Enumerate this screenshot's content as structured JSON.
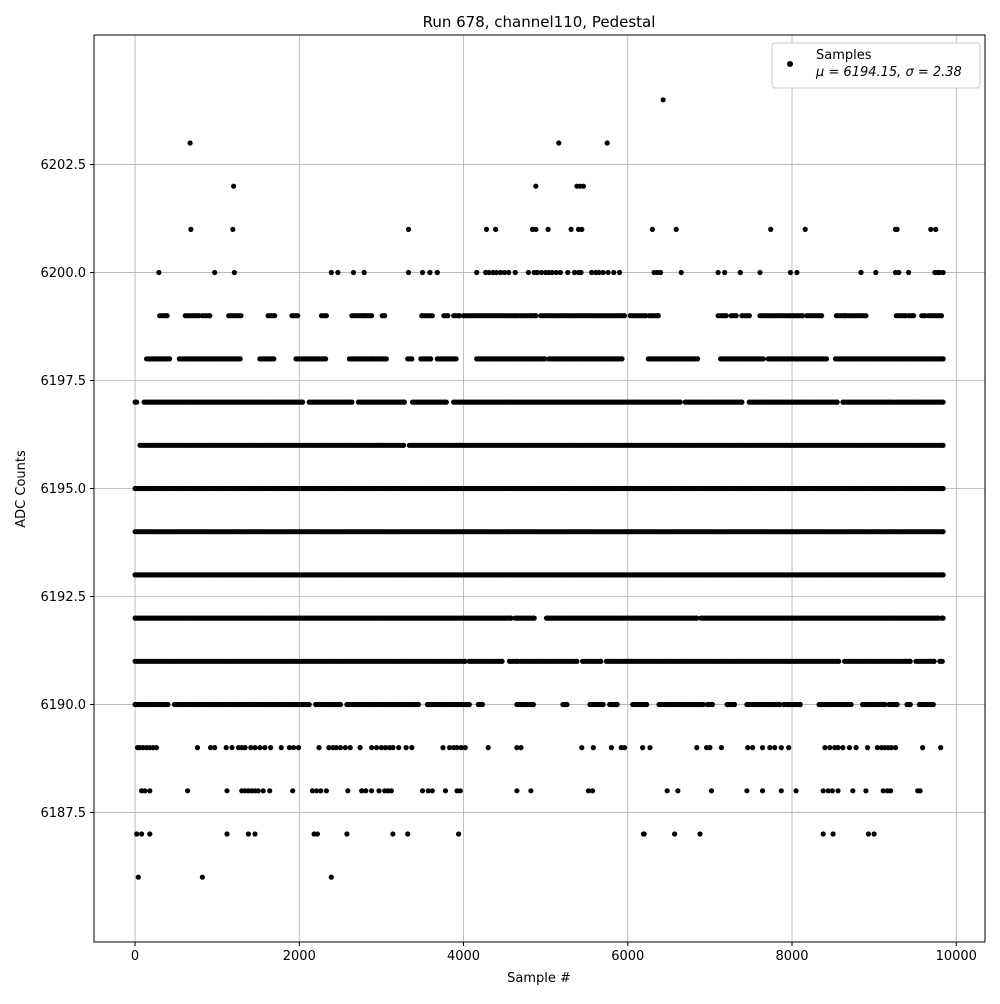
{
  "chart_data": {
    "type": "scatter",
    "title": "Run 678, channel110, Pedestal",
    "xlabel": "Sample #",
    "ylabel": "ADC Counts",
    "xlim": [
      -500,
      10350
    ],
    "ylim": [
      6184.5,
      6205.5
    ],
    "x_ticks": [
      0,
      2000,
      4000,
      6000,
      8000,
      10000
    ],
    "x_tick_labels": [
      "0",
      "2000",
      "4000",
      "6000",
      "8000",
      "10000"
    ],
    "y_ticks": [
      6187.5,
      6190.0,
      6192.5,
      6195.0,
      6197.5,
      6200.0,
      6202.5
    ],
    "y_tick_labels": [
      "6187.5",
      "6190.0",
      "6192.5",
      "6195.0",
      "6197.5",
      "6200.0",
      "6202.5"
    ],
    "grid": true,
    "legend_position": "top-right",
    "legend": {
      "label": "Samples",
      "stats": "μ = 6194.15, σ = 2.38"
    },
    "marker_color": "#000000",
    "n_samples": 9840,
    "levels": [
      {
        "y": 6186,
        "x": [
          40,
          820,
          2390
        ]
      },
      {
        "y": 6187,
        "x": [
          20,
          80,
          180,
          1120,
          1380,
          1460,
          2180,
          2220,
          2580,
          3140,
          3320,
          3940,
          6190,
          6200,
          6570,
          6880,
          8380,
          8500,
          8930,
          9000
        ]
      },
      {
        "y": 6188,
        "x": [
          80,
          120,
          180,
          640,
          1120,
          1300,
          1340,
          1380,
          1420,
          1460,
          1500,
          1560,
          1640,
          1920,
          2160,
          2210,
          2260,
          2330,
          2590,
          2760,
          2810,
          2880,
          2970,
          3040,
          3080,
          3120,
          3500,
          3570,
          3620,
          3780,
          3920,
          3960,
          4650,
          4820,
          5520,
          5570,
          6480,
          6610,
          7020,
          7450,
          7640,
          7870,
          8050,
          8380,
          8440,
          8490,
          8560,
          8740,
          8900,
          9110,
          9160,
          9200,
          9530,
          9560
        ]
      },
      {
        "y": 6189,
        "x": [
          30,
          60,
          100,
          140,
          180,
          220,
          260,
          760,
          920,
          970,
          1110,
          1180,
          1260,
          1300,
          1340,
          1410,
          1460,
          1520,
          1580,
          1650,
          1780,
          1880,
          1930,
          1990,
          2240,
          2360,
          2410,
          2450,
          2500,
          2560,
          2620,
          2740,
          2880,
          2940,
          3000,
          3050,
          3100,
          3140,
          3210,
          3300,
          3370,
          3750,
          3830,
          3880,
          3920,
          3970,
          4020,
          4300,
          4650,
          4700,
          5440,
          5580,
          5800,
          5920,
          5960,
          6180,
          6270,
          6840,
          6960,
          7000,
          7140,
          7460,
          7520,
          7640,
          7730,
          7790,
          7870,
          7960,
          8400,
          8460,
          8520,
          8560,
          8620,
          8700,
          8780,
          8920,
          9040,
          9090,
          9130,
          9170,
          9210,
          9260,
          9590,
          9810
        ]
      }
    ],
    "bands": [
      {
        "y": 6190,
        "ranges": [
          [
            0,
            400
          ],
          [
            480,
            2120
          ],
          [
            2200,
            2500
          ],
          [
            2580,
            3450
          ],
          [
            3560,
            4070
          ],
          [
            4180,
            4230
          ],
          [
            4650,
            4850
          ],
          [
            5210,
            5260
          ],
          [
            5540,
            5700
          ],
          [
            5780,
            5870
          ],
          [
            6060,
            6230
          ],
          [
            6380,
            6920
          ],
          [
            6970,
            7030
          ],
          [
            7210,
            7300
          ],
          [
            7450,
            7850
          ],
          [
            7900,
            8100
          ],
          [
            8330,
            8720
          ],
          [
            8860,
            9130
          ],
          [
            9180,
            9280
          ],
          [
            9400,
            9440
          ],
          [
            9550,
            9720
          ]
        ]
      },
      {
        "y": 6191,
        "ranges": [
          [
            0,
            4020
          ],
          [
            4070,
            4470
          ],
          [
            4560,
            4660
          ],
          [
            4690,
            5380
          ],
          [
            5450,
            5670
          ],
          [
            5740,
            8570
          ],
          [
            8640,
            9440
          ],
          [
            9510,
            9730
          ],
          [
            9800,
            9830
          ]
        ]
      },
      {
        "y": 6192,
        "ranges": [
          [
            0,
            4580
          ],
          [
            4630,
            4860
          ],
          [
            5010,
            6840
          ],
          [
            6890,
            9780
          ],
          [
            9820,
            9840
          ]
        ]
      },
      {
        "y": 6193,
        "ranges": [
          [
            0,
            9840
          ]
        ]
      },
      {
        "y": 6194,
        "ranges": [
          [
            0,
            9840
          ]
        ]
      },
      {
        "y": 6195,
        "ranges": [
          [
            0,
            9840
          ]
        ]
      },
      {
        "y": 6196,
        "ranges": [
          [
            60,
            3270
          ],
          [
            3340,
            9840
          ]
        ]
      },
      {
        "y": 6197,
        "ranges": [
          [
            0,
            20
          ],
          [
            110,
            2040
          ],
          [
            2120,
            2640
          ],
          [
            2720,
            3280
          ],
          [
            3380,
            3790
          ],
          [
            3880,
            6640
          ],
          [
            6700,
            7390
          ],
          [
            7480,
            8550
          ],
          [
            8620,
            9230
          ],
          [
            9260,
            9840
          ]
        ]
      },
      {
        "y": 6198,
        "ranges": [
          [
            140,
            420
          ],
          [
            540,
            1280
          ],
          [
            1520,
            1690
          ],
          [
            1960,
            2320
          ],
          [
            2610,
            2900
          ],
          [
            2920,
            3060
          ],
          [
            3320,
            3370
          ],
          [
            3480,
            3600
          ],
          [
            3680,
            3910
          ],
          [
            4160,
            4990
          ],
          [
            5040,
            5930
          ],
          [
            6250,
            6850
          ],
          [
            7130,
            7650
          ],
          [
            7710,
            8300
          ],
          [
            8320,
            8420
          ],
          [
            8530,
            9270
          ],
          [
            9290,
            9840
          ]
        ]
      },
      {
        "y": 6199,
        "ranges": [
          [
            300,
            390
          ],
          [
            610,
            780
          ],
          [
            820,
            910
          ],
          [
            1140,
            1290
          ],
          [
            1620,
            1700
          ],
          [
            1910,
            1980
          ],
          [
            2270,
            2330
          ],
          [
            2640,
            2780
          ],
          [
            2800,
            2880
          ],
          [
            3010,
            3040
          ],
          [
            3490,
            3620
          ],
          [
            3760,
            3810
          ],
          [
            3880,
            3950
          ],
          [
            4000,
            4650
          ],
          [
            4680,
            4880
          ],
          [
            4940,
            5960
          ],
          [
            6030,
            6220
          ],
          [
            6260,
            6370
          ],
          [
            7100,
            7200
          ],
          [
            7260,
            7320
          ],
          [
            7390,
            7480
          ],
          [
            7610,
            7980
          ],
          [
            8010,
            8130
          ],
          [
            8180,
            8360
          ],
          [
            8540,
            8640
          ],
          [
            8650,
            8900
          ],
          [
            9270,
            9380
          ],
          [
            9420,
            9480
          ],
          [
            9580,
            9620
          ],
          [
            9660,
            9820
          ]
        ]
      }
    ],
    "scatter_upper": [
      {
        "y": 6200,
        "x": [
          290,
          970,
          1210,
          2390,
          2470,
          2660,
          2790,
          3330,
          3500,
          3590,
          3680,
          4160,
          4270,
          4310,
          4360,
          4400,
          4450,
          4500,
          4550,
          4630,
          4790,
          4860,
          4900,
          4950,
          5000,
          5040,
          5080,
          5130,
          5180,
          5270,
          5350,
          5400,
          5430,
          5560,
          5610,
          5650,
          5700,
          5760,
          5830,
          5900,
          6320,
          6360,
          6400,
          6650,
          7100,
          7180,
          7370,
          7610,
          7980,
          8060,
          8840,
          9020,
          9260,
          9300,
          9420,
          9740,
          9770,
          9800,
          9840
        ]
      },
      {
        "y": 6201,
        "x": [
          680,
          1190,
          3330,
          4280,
          4390,
          4840,
          4880,
          5030,
          5310,
          5400,
          5440,
          6300,
          6590,
          7740,
          8160,
          9260,
          9280,
          9690,
          9750
        ]
      },
      {
        "y": 6202,
        "x": [
          1200,
          4880,
          5380,
          5420,
          5460
        ]
      },
      {
        "y": 6203,
        "x": [
          670,
          5160,
          5750
        ]
      },
      {
        "y": 6204,
        "x": [
          6430
        ]
      }
    ]
  }
}
